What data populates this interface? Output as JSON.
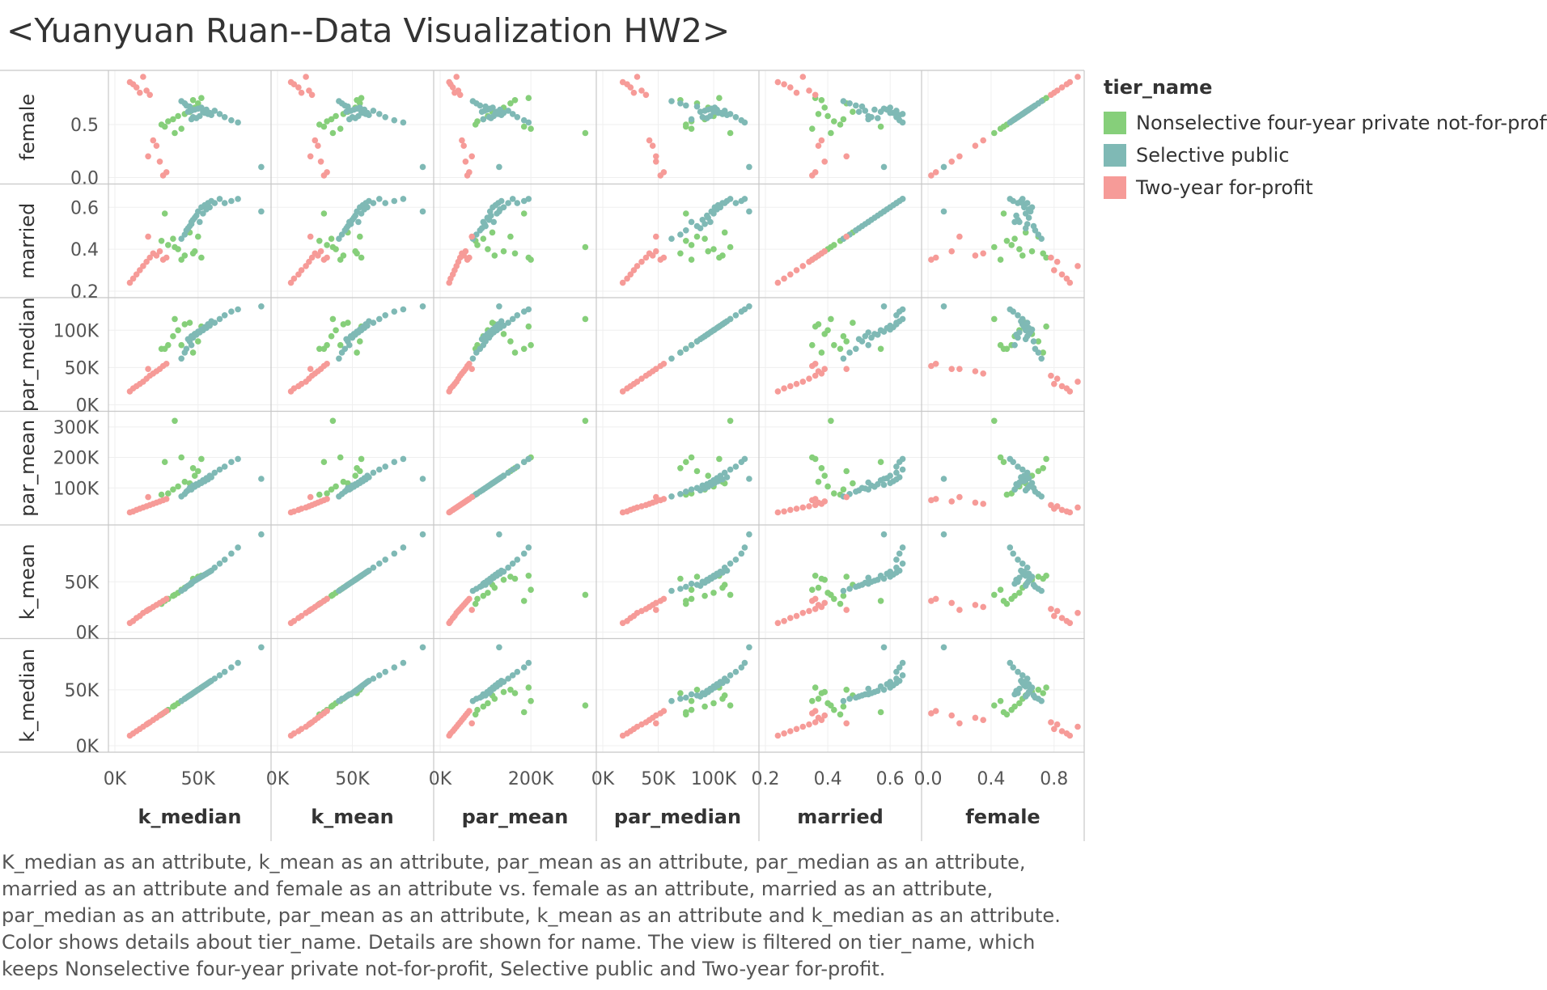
{
  "title": "<Yuanyuan Ruan--Data Visualization HW2>",
  "legend": {
    "title": "tier_name",
    "items": [
      {
        "label": "Nonselective four-year private not-for-profit",
        "color": "#86cf7a"
      },
      {
        "label": "Selective public",
        "color": "#7fb9b5"
      },
      {
        "label": "Two-year for-profit",
        "color": "#f69b98"
      }
    ]
  },
  "caption": "K_median as an attribute, k_mean as an attribute, par_mean as an attribute, par_median as an attribute, married as an attribute and female as an attribute vs. female as an attribute, married as an attribute, par_median as an attribute, par_mean as an attribute, k_mean as an attribute and k_median as an attribute.  Color shows details about tier_name.  Details are shown for name. The view is filtered on tier_name, which keeps Nonselective four-year private not-for-profit, Selective public and Two-year for-profit.",
  "chart_data": {
    "type": "scatter",
    "title": "<Yuanyuan Ruan--Data Visualization HW2>",
    "columns": [
      {
        "name": "k_median",
        "range": [
          0,
          90000
        ],
        "ticks": [
          {
            "v": 0,
            "label": "0K"
          },
          {
            "v": 50000,
            "label": "50K"
          }
        ]
      },
      {
        "name": "k_mean",
        "range": [
          0,
          100000
        ],
        "ticks": [
          {
            "v": 0,
            "label": "0K"
          },
          {
            "v": 50000,
            "label": "50K"
          }
        ]
      },
      {
        "name": "par_mean",
        "range": [
          0,
          330000
        ],
        "ticks": [
          {
            "v": 0,
            "label": "0K"
          },
          {
            "v": 200000,
            "label": "200K"
          }
        ]
      },
      {
        "name": "par_median",
        "range": [
          0,
          135000
        ],
        "ticks": [
          {
            "v": 0,
            "label": "0K"
          },
          {
            "v": 50000,
            "label": "50K"
          },
          {
            "v": 100000,
            "label": "100K"
          }
        ]
      },
      {
        "name": "married",
        "range": [
          0.2,
          0.68
        ],
        "ticks": [
          {
            "v": 0.2,
            "label": "0.2"
          },
          {
            "v": 0.4,
            "label": "0.4"
          },
          {
            "v": 0.6,
            "label": "0.6"
          }
        ]
      },
      {
        "name": "female",
        "range": [
          0,
          0.95
        ],
        "ticks": [
          {
            "v": 0.0,
            "label": "0.0"
          },
          {
            "v": 0.4,
            "label": "0.4"
          },
          {
            "v": 0.8,
            "label": "0.8"
          }
        ]
      }
    ],
    "rows": [
      {
        "name": "female",
        "range": [
          0,
          0.95
        ],
        "ticks": [
          {
            "v": 0.0,
            "label": "0.0"
          },
          {
            "v": 0.5,
            "label": "0.5"
          }
        ]
      },
      {
        "name": "married",
        "range": [
          0.2,
          0.68
        ],
        "ticks": [
          {
            "v": 0.2,
            "label": "0.2"
          },
          {
            "v": 0.4,
            "label": "0.4"
          },
          {
            "v": 0.6,
            "label": "0.6"
          }
        ]
      },
      {
        "name": "par_median",
        "range": [
          0,
          135000
        ],
        "ticks": [
          {
            "v": 0,
            "label": "0K"
          },
          {
            "v": 50000,
            "label": "50K"
          },
          {
            "v": 100000,
            "label": "100K"
          }
        ]
      },
      {
        "name": "par_mean",
        "range": [
          0,
          330000
        ],
        "ticks": [
          {
            "v": 100000,
            "label": "100K"
          },
          {
            "v": 200000,
            "label": "200K"
          },
          {
            "v": 300000,
            "label": "300K"
          }
        ]
      },
      {
        "name": "k_mean",
        "range": [
          0,
          100000
        ],
        "ticks": [
          {
            "v": 0,
            "label": "0K"
          },
          {
            "v": 50000,
            "label": "50K"
          }
        ]
      },
      {
        "name": "k_median",
        "range": [
          0,
          90000
        ],
        "ticks": [
          {
            "v": 0,
            "label": "0K"
          },
          {
            "v": 50000,
            "label": "50K"
          }
        ]
      }
    ],
    "series": [
      {
        "name": "Nonselective four-year private not-for-profit",
        "color": "#86cf7a",
        "points": [
          [
            28000,
            28000,
            78000,
            75000,
            0.44,
            0.5
          ],
          [
            32000,
            33000,
            82000,
            80000,
            0.42,
            0.53
          ],
          [
            35000,
            36000,
            95000,
            92000,
            0.45,
            0.55
          ],
          [
            38000,
            39000,
            105000,
            100000,
            0.4,
            0.58
          ],
          [
            42000,
            44000,
            120000,
            108000,
            0.37,
            0.6
          ],
          [
            45000,
            47000,
            115000,
            110000,
            0.48,
            0.62
          ],
          [
            48000,
            52000,
            140000,
            95000,
            0.39,
            0.66
          ],
          [
            50000,
            55000,
            155000,
            85000,
            0.46,
            0.7
          ],
          [
            47000,
            53000,
            165000,
            70000,
            0.38,
            0.73
          ],
          [
            52000,
            56000,
            195000,
            105000,
            0.36,
            0.75
          ],
          [
            40000,
            42000,
            200000,
            80000,
            0.35,
            0.46
          ],
          [
            36000,
            37000,
            320000,
            115000,
            0.41,
            0.42
          ],
          [
            30000,
            31000,
            185000,
            75000,
            0.57,
            0.48
          ]
        ]
      },
      {
        "name": "Selective public",
        "color": "#7fb9b5",
        "points": [
          [
            44000,
            46000,
            92000,
            88000,
            0.5,
            0.62
          ],
          [
            46000,
            49000,
            98000,
            92000,
            0.52,
            0.63
          ],
          [
            48000,
            51000,
            104000,
            95000,
            0.55,
            0.64
          ],
          [
            50000,
            53000,
            110000,
            98000,
            0.58,
            0.65
          ],
          [
            52000,
            55000,
            116000,
            101000,
            0.6,
            0.66
          ],
          [
            54000,
            57000,
            122000,
            104000,
            0.61,
            0.61
          ],
          [
            56000,
            59000,
            128000,
            108000,
            0.62,
            0.6
          ],
          [
            58000,
            61000,
            135000,
            112000,
            0.63,
            0.59
          ],
          [
            45000,
            47000,
            100000,
            85000,
            0.51,
            0.67
          ],
          [
            47000,
            50000,
            108000,
            90000,
            0.54,
            0.57
          ],
          [
            49000,
            52000,
            112000,
            94000,
            0.56,
            0.56
          ],
          [
            51000,
            54000,
            118000,
            97000,
            0.53,
            0.58
          ],
          [
            53000,
            56000,
            125000,
            100000,
            0.57,
            0.62
          ],
          [
            55000,
            58000,
            132000,
            103000,
            0.59,
            0.64
          ],
          [
            57000,
            60000,
            140000,
            106000,
            0.6,
            0.61
          ],
          [
            60000,
            64000,
            150000,
            110000,
            0.62,
            0.63
          ],
          [
            63000,
            68000,
            160000,
            115000,
            0.64,
            0.6
          ],
          [
            66000,
            72000,
            170000,
            120000,
            0.62,
            0.57
          ],
          [
            70000,
            78000,
            185000,
            125000,
            0.63,
            0.54
          ],
          [
            74000,
            84000,
            195000,
            128000,
            0.64,
            0.52
          ],
          [
            88000,
            97000,
            130000,
            132000,
            0.58,
            0.1
          ],
          [
            42000,
            43000,
            80000,
            70000,
            0.47,
            0.7
          ],
          [
            40000,
            41000,
            72000,
            62000,
            0.45,
            0.72
          ],
          [
            43000,
            45000,
            88000,
            75000,
            0.49,
            0.68
          ],
          [
            46000,
            48000,
            95000,
            80000,
            0.53,
            0.55
          ]
        ]
      },
      {
        "name": "Two-year for-profit",
        "color": "#f69b98",
        "points": [
          [
            9000,
            9000,
            20000,
            18000,
            0.24,
            0.9
          ],
          [
            11000,
            11000,
            23000,
            22000,
            0.26,
            0.88
          ],
          [
            13000,
            14000,
            28000,
            25000,
            0.28,
            0.85
          ],
          [
            15000,
            16000,
            32000,
            28000,
            0.3,
            0.8
          ],
          [
            17000,
            19000,
            36000,
            31000,
            0.32,
            0.95
          ],
          [
            19000,
            21000,
            40000,
            35000,
            0.34,
            0.82
          ],
          [
            21000,
            23000,
            44000,
            39000,
            0.36,
            0.78
          ],
          [
            23000,
            25000,
            48000,
            42000,
            0.38,
            0.35
          ],
          [
            25000,
            27000,
            52000,
            45000,
            0.37,
            0.3
          ],
          [
            27000,
            29000,
            56000,
            48000,
            0.39,
            0.15
          ],
          [
            29000,
            31000,
            60000,
            52000,
            0.35,
            0.02
          ],
          [
            31000,
            33000,
            64000,
            55000,
            0.36,
            0.05
          ],
          [
            20000,
            22000,
            70000,
            48000,
            0.46,
            0.2
          ]
        ]
      }
    ]
  }
}
